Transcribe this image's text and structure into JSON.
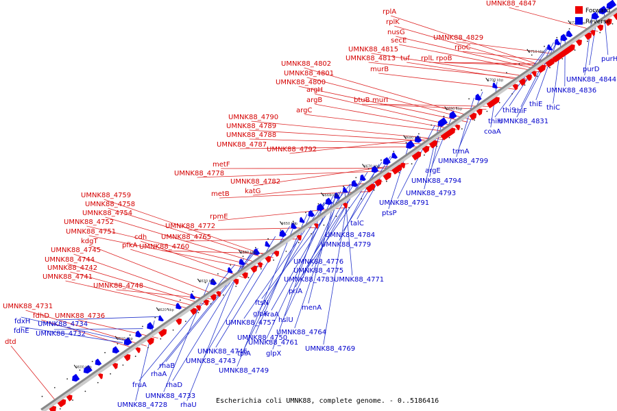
{
  "caption": "Escherichia coli UMNK88, complete genome. - 0..5186416",
  "legend": [
    {
      "label": "Forward",
      "color": "#ee0000"
    },
    {
      "label": "Reverse",
      "color": "#0000ee"
    }
  ],
  "colors": {
    "forward": "#ee0000",
    "reverse": "#0000ee",
    "forward_line": "#dd2222",
    "reverse_line": "#2233cc",
    "backbone": "#999999"
  },
  "ticks": [
    "4600 kbp",
    "4610 kbp",
    "4620 kbp",
    "4630 kbp",
    "4640 kbp",
    "4650 kbp",
    "4660 kbp",
    "4670 kbp",
    "4680 kbp",
    "4690 kbp",
    "4700 kbp",
    "4710 kbp",
    "4720 kbp",
    "4730 kbp"
  ],
  "forward_labels": [
    {
      "text": "UMNK88_4847",
      "pos": 0.959
    },
    {
      "text": "rplA",
      "pos": 0.87
    },
    {
      "text": "rplK",
      "pos": 0.866
    },
    {
      "text": "nusG",
      "pos": 0.862
    },
    {
      "text": "secE",
      "pos": 0.858
    },
    {
      "text": "UMNK88_4829",
      "pos": 0.9
    },
    {
      "text": "UMNK88_4815",
      "pos": 0.845
    },
    {
      "text": "UMNK88_4813",
      "pos": 0.84
    },
    {
      "text": "tuf",
      "pos": 0.836
    },
    {
      "text": "rplL",
      "pos": 0.874
    },
    {
      "text": "rpoB",
      "pos": 0.878
    },
    {
      "text": "rpoC",
      "pos": 0.884
    },
    {
      "text": "UMNK88_4802",
      "pos": 0.745
    },
    {
      "text": "UMNK88_4801",
      "pos": 0.739
    },
    {
      "text": "UMNK88_4800",
      "pos": 0.733
    },
    {
      "text": "murB",
      "pos": 0.815
    },
    {
      "text": "argH",
      "pos": 0.72
    },
    {
      "text": "btuB",
      "pos": 0.765
    },
    {
      "text": "murI",
      "pos": 0.772
    },
    {
      "text": "argB",
      "pos": 0.714
    },
    {
      "text": "argC",
      "pos": 0.708
    },
    {
      "text": "UMNK88_4790",
      "pos": 0.69
    },
    {
      "text": "UMNK88_4789",
      "pos": 0.684
    },
    {
      "text": "UMNK88_4788",
      "pos": 0.678
    },
    {
      "text": "UMNK88_4787",
      "pos": 0.672
    },
    {
      "text": "UMNK88_4792",
      "pos": 0.697
    },
    {
      "text": "metF",
      "pos": 0.618
    },
    {
      "text": "UMNK88_4778",
      "pos": 0.612
    },
    {
      "text": "UMNK88_4782",
      "pos": 0.63
    },
    {
      "text": "metB",
      "pos": 0.56
    },
    {
      "text": "katG",
      "pos": 0.585
    },
    {
      "text": "UMNK88_4759",
      "pos": 0.395
    },
    {
      "text": "UMNK88_4758",
      "pos": 0.39
    },
    {
      "text": "UMNK88_4754",
      "pos": 0.378
    },
    {
      "text": "rpmE",
      "pos": 0.52
    },
    {
      "text": "UMNK88_4752",
      "pos": 0.372
    },
    {
      "text": "UMNK88_4772",
      "pos": 0.47
    },
    {
      "text": "UMNK88_4751",
      "pos": 0.366
    },
    {
      "text": "cdh",
      "pos": 0.345
    },
    {
      "text": "UMNK88_4765",
      "pos": 0.442
    },
    {
      "text": "kdgT",
      "pos": 0.3
    },
    {
      "text": "pfkA",
      "pos": 0.335
    },
    {
      "text": "UMNK88_4760",
      "pos": 0.405
    },
    {
      "text": "UMNK88_4745",
      "pos": 0.285
    },
    {
      "text": "UMNK88_4744",
      "pos": 0.278
    },
    {
      "text": "UMNK88_4742",
      "pos": 0.27
    },
    {
      "text": "UMNK88_4741",
      "pos": 0.264
    },
    {
      "text": "UMNK88_4748",
      "pos": 0.292
    },
    {
      "text": "UMNK88_4731",
      "pos": 0.175
    },
    {
      "text": "fdhD",
      "pos": 0.165
    },
    {
      "text": "UMNK88_4736",
      "pos": 0.195
    },
    {
      "text": "dtd",
      "pos": 0.025
    }
  ],
  "reverse_labels": [
    {
      "text": "purH",
      "pos": 0.985
    },
    {
      "text": "purD",
      "pos": 0.975
    },
    {
      "text": "UMNK88_4844",
      "pos": 0.965
    },
    {
      "text": "UMNK88_4836",
      "pos": 0.918
    },
    {
      "text": "thiC",
      "pos": 0.912
    },
    {
      "text": "thiE",
      "pos": 0.905
    },
    {
      "text": "thiF",
      "pos": 0.898
    },
    {
      "text": "thiS",
      "pos": 0.892
    },
    {
      "text": "UMNK88_4831",
      "pos": 0.906
    },
    {
      "text": "thiH",
      "pos": 0.888
    },
    {
      "text": "coaA",
      "pos": 0.8
    },
    {
      "text": "trmA",
      "pos": 0.775
    },
    {
      "text": "UMNK88_4799",
      "pos": 0.76
    },
    {
      "text": "argE",
      "pos": 0.725
    },
    {
      "text": "UMNK88_4794",
      "pos": 0.705
    },
    {
      "text": "UMNK88_4793",
      "pos": 0.7
    },
    {
      "text": "UMNK88_4791",
      "pos": 0.692
    },
    {
      "text": "ptsP",
      "pos": 0.648
    },
    {
      "text": "talC",
      "pos": 0.62
    },
    {
      "text": "UMNK88_4784",
      "pos": 0.615
    },
    {
      "text": "UMNK88_4779",
      "pos": 0.595
    },
    {
      "text": "UMNK88_4776",
      "pos": 0.575
    },
    {
      "text": "UMNK88_4775",
      "pos": 0.568
    },
    {
      "text": "UMNK88_4783",
      "pos": 0.6
    },
    {
      "text": "UMNK88_4771",
      "pos": 0.535
    },
    {
      "text": "priA",
      "pos": 0.555
    },
    {
      "text": "menA",
      "pos": 0.52
    },
    {
      "text": "ftsN",
      "pos": 0.545
    },
    {
      "text": "rraA",
      "pos": 0.525
    },
    {
      "text": "glpK",
      "pos": 0.505
    },
    {
      "text": "hslU",
      "pos": 0.535
    },
    {
      "text": "UMNK88_4757",
      "pos": 0.5
    },
    {
      "text": "UMNK88_4764",
      "pos": 0.528
    },
    {
      "text": "UMNK88_4750",
      "pos": 0.47
    },
    {
      "text": "UMNK88_4761",
      "pos": 0.515
    },
    {
      "text": "UMNK88_4769",
      "pos": 0.545
    },
    {
      "text": "UMNK88_4746",
      "pos": 0.44
    },
    {
      "text": "tpiA",
      "pos": 0.48
    },
    {
      "text": "glpX",
      "pos": 0.5
    },
    {
      "text": "UMNK88_4743",
      "pos": 0.415
    },
    {
      "text": "UMNK88_4749",
      "pos": 0.45
    },
    {
      "text": "rhaB",
      "pos": 0.385
    },
    {
      "text": "rhaA",
      "pos": 0.378
    },
    {
      "text": "rhaD",
      "pos": 0.372
    },
    {
      "text": "fruA",
      "pos": 0.345
    },
    {
      "text": "UMNK88_4733",
      "pos": 0.3
    },
    {
      "text": "UMNK88_4728",
      "pos": 0.205
    },
    {
      "text": "rhaU",
      "pos": 0.36
    },
    {
      "text": "fdxH",
      "pos": 0.155
    },
    {
      "text": "UMNK88_4734",
      "pos": 0.215
    },
    {
      "text": "fdhE",
      "pos": 0.15
    },
    {
      "text": "UMNK88_4732",
      "pos": 0.185
    }
  ]
}
